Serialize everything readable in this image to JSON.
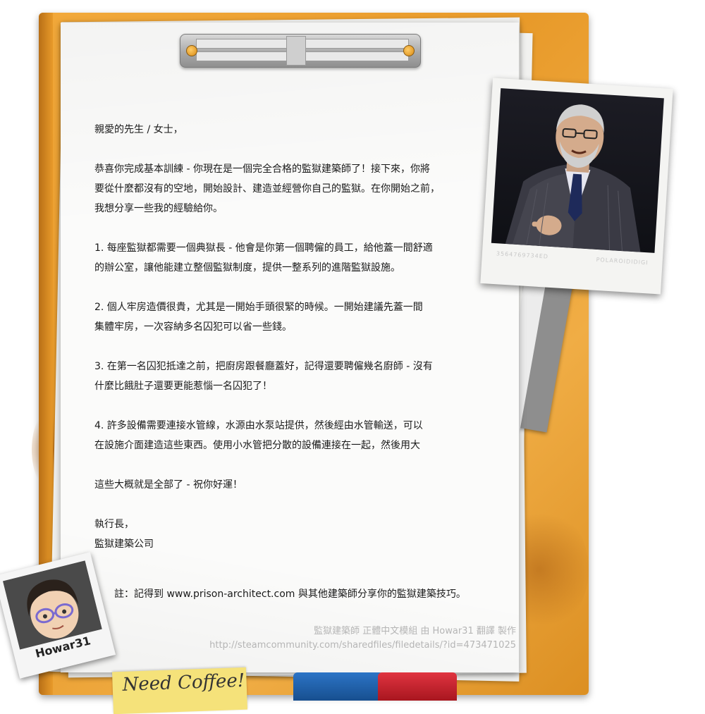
{
  "letter": {
    "greeting": "親愛的先生 / 女士，",
    "intro": [
      "恭喜你完成基本訓練 - 你現在是一個完全合格的監獄建築師了！接下來，你將",
      "要從什麼都沒有的空地，開始設計、建造並經營你自己的監獄。在你開始之前，",
      "我想分享一些我的經驗給你。"
    ],
    "tip1": [
      "1. 每座監獄都需要一個典獄長 - 他會是你第一個聘僱的員工，給他蓋一間舒適",
      "的辦公室，讓他能建立整個監獄制度，提供一整系列的進階監獄設施。"
    ],
    "tip2": [
      "2. 個人牢房造價很貴，尤其是一開始手頭很緊的時候。一開始建議先蓋一間",
      "集體牢房，一次容納多名囚犯可以省一些錢。"
    ],
    "tip3": [
      "3. 在第一名囚犯抵達之前，把廚房跟餐廳蓋好，記得還要聘僱幾名廚師 - 沒有",
      "什麼比餓肚子還要更能惹惱一名囚犯了！"
    ],
    "tip4": [
      "4. 許多設備需要連接水管線，水源由水泵站提供，然後經由水管輸送，可以",
      "在設施介面建造這些東西。使用小水管把分散的設備連接在一起，然後用大"
    ],
    "closing": "這些大概就是全部了 - 祝你好運！",
    "sign_title": "執行長，",
    "sign_company": "監獄建築公司",
    "note": "註：記得到 www.prison-architect.com 與其他建築師分享你的監獄建築技巧。"
  },
  "credits": {
    "line1": "監獄建築師 正體中文模組 由 Howar31 翻譯 製作",
    "line2": "http://steamcommunity.com/sharedfiles/filedetails/?id=473471025"
  },
  "photo": {
    "number": "3564769734ED",
    "stamp": "POLAROIDIDIGI"
  },
  "avatar": {
    "name": "Howar31"
  },
  "sticky_note": {
    "text": "Need Coffee!"
  },
  "colors": {
    "folder": "#e89a2a",
    "tab_blue": "#1f5fa8",
    "tab_red": "#c8202c"
  }
}
